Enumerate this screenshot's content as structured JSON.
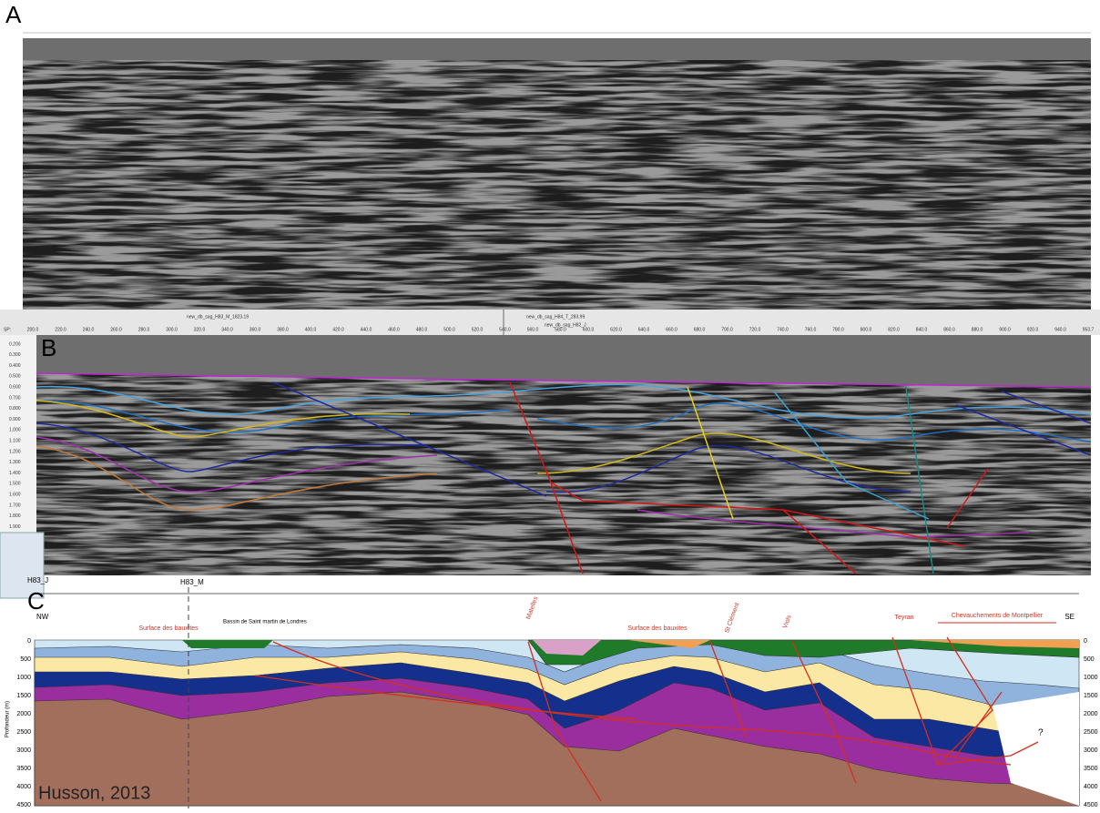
{
  "panel_a": {
    "label": "A"
  },
  "panel_b": {
    "label": "B",
    "sp_prefix": "SP:",
    "sp_ticks": [
      "200.0",
      "220.0",
      "240.0",
      "260.0",
      "280.0",
      "300.0",
      "320.0",
      "340.0",
      "360.0",
      "380.0",
      "400.0",
      "420.0",
      "440.0",
      "460.0",
      "480.0",
      "500.0",
      "520.0",
      "540.0",
      "560.0",
      "580.0",
      "600.0",
      "620.0",
      "640.0",
      "660.0",
      "680.0",
      "700.0",
      "720.0",
      "740.0",
      "760.0",
      "780.0",
      "800.0",
      "820.0",
      "840.0",
      "860.0",
      "880.0",
      "900.0",
      "920.0",
      "940.0",
      "953.7"
    ],
    "time_ticks": [
      "0.200",
      "0.300",
      "0.400",
      "0.500",
      "0.600",
      "0.700",
      "0.800",
      "0.900",
      "1.000",
      "1.100",
      "1.200",
      "1.300",
      "1.400",
      "1.500",
      "1.600",
      "1.700",
      "1.800",
      "1.900"
    ],
    "horizon_labels": [
      "new_db_sag_H83_M_1823.19",
      "new_db_sag_H84_T_283.99",
      "new_db_sag_H82_J"
    ]
  },
  "panel_c": {
    "label": "C",
    "left_well": "H83_J",
    "right_well": "H83_M",
    "nw": "NW",
    "se": "SE",
    "depth_label": "Profondeur (m)",
    "depth_ticks": [
      "0",
      "500",
      "1000",
      "1500",
      "2000",
      "2500",
      "3000",
      "3500",
      "4000",
      "4500"
    ],
    "annotations": [
      "Surface des bauxites",
      "Bassin de Saint martin de Londres",
      "Surface des bauxites",
      "Matelles",
      "St Clément",
      "Viols",
      "Teyran",
      "Chevauchements de Montpellier"
    ],
    "question": "?",
    "credit": "Husson, 2013"
  }
}
